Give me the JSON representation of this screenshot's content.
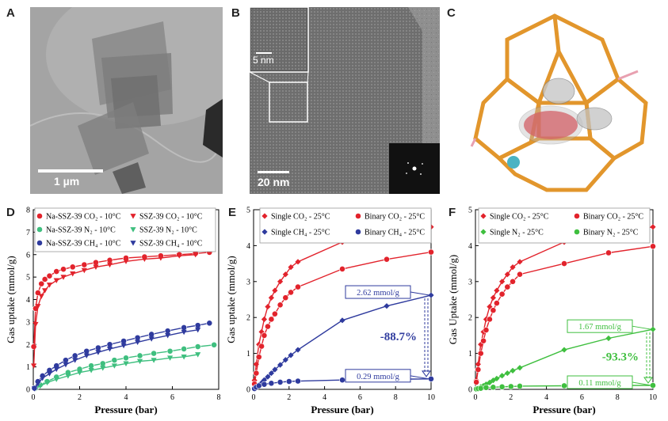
{
  "panels": {
    "A": {
      "letter": "A",
      "scale": "1 µm"
    },
    "B": {
      "letter": "B",
      "scale": "20 nm",
      "inset_scale": "5 nm"
    },
    "C": {
      "letter": "C"
    }
  },
  "colors": {
    "red": "#e2232c",
    "green": "#3fbf7f",
    "blue": "#2f3b9e",
    "green_f": "#3fbf3f"
  },
  "chart_data": [
    {
      "panel": "D",
      "type": "scatter",
      "xlabel": "Pressure (bar)",
      "ylabel": "Gas uptake (mmol/g)",
      "xlim": [
        0,
        8
      ],
      "ylim": [
        0,
        8
      ],
      "xticks": [
        "0",
        "2",
        "4",
        "6",
        "8"
      ],
      "yticks": [
        "0",
        "1",
        "2",
        "3",
        "4",
        "5",
        "6",
        "7",
        "8"
      ],
      "legend": [
        {
          "label": "Na-SSZ-39 CO₂ - 10°C",
          "color": "#e2232c",
          "marker": "circle"
        },
        {
          "label": "SSZ-39 CO₂ - 10°C",
          "color": "#e2232c",
          "marker": "triangle-down"
        },
        {
          "label": "Na-SSZ-39 N₂ - 10°C",
          "color": "#3fbf7f",
          "marker": "circle"
        },
        {
          "label": "SSZ-39 N₂ - 10°C",
          "color": "#3fbf7f",
          "marker": "triangle-down"
        },
        {
          "label": "Na-SSZ-39 CH₄ - 10°C",
          "color": "#2f3b9e",
          "marker": "circle"
        },
        {
          "label": "SSZ-39 CH₄ - 10°C",
          "color": "#2f3b9e",
          "marker": "triangle-down"
        }
      ],
      "series": [
        {
          "color": "#e2232c",
          "marker": "circle",
          "x": [
            0.02,
            0.1,
            0.2,
            0.35,
            0.5,
            0.7,
            1.0,
            1.3,
            1.7,
            2.2,
            2.7,
            3.3,
            4.0,
            4.8,
            5.5,
            6.3,
            7.0,
            7.6
          ],
          "y": [
            1.9,
            3.6,
            4.3,
            4.7,
            4.9,
            5.05,
            5.25,
            5.35,
            5.45,
            5.55,
            5.65,
            5.75,
            5.85,
            5.9,
            5.95,
            6.0,
            6.05,
            6.1
          ]
        },
        {
          "color": "#e2232c",
          "marker": "triangle-down",
          "x": [
            0.02,
            0.1,
            0.2,
            0.35,
            0.5,
            0.7,
            1.0,
            1.3,
            1.7,
            2.2,
            2.7,
            3.3,
            4.0,
            4.8,
            5.5,
            6.3,
            7.0
          ],
          "y": [
            1.05,
            2.9,
            3.7,
            4.15,
            4.4,
            4.65,
            4.85,
            5.0,
            5.15,
            5.3,
            5.45,
            5.55,
            5.7,
            5.8,
            5.85,
            5.95,
            6.0
          ]
        },
        {
          "color": "#3fbf7f",
          "marker": "circle",
          "x": [
            0.1,
            0.3,
            0.6,
            1.0,
            1.5,
            2.0,
            2.5,
            3.0,
            3.5,
            4.0,
            4.6,
            5.2,
            5.9,
            6.5,
            7.1,
            7.8
          ],
          "y": [
            0.05,
            0.2,
            0.35,
            0.55,
            0.75,
            0.9,
            1.05,
            1.15,
            1.3,
            1.4,
            1.5,
            1.6,
            1.7,
            1.8,
            1.9,
            1.98
          ]
        },
        {
          "color": "#3fbf7f",
          "marker": "triangle-down",
          "x": [
            0.1,
            0.3,
            0.6,
            1.0,
            1.5,
            2.0,
            2.5,
            3.0,
            3.5,
            4.0,
            4.6,
            5.2,
            5.9,
            6.5,
            7.1
          ],
          "y": [
            0.03,
            0.15,
            0.3,
            0.45,
            0.6,
            0.75,
            0.85,
            0.95,
            1.05,
            1.15,
            1.25,
            1.3,
            1.4,
            1.45,
            1.55
          ]
        },
        {
          "color": "#2f3b9e",
          "marker": "circle",
          "x": [
            0.05,
            0.2,
            0.4,
            0.7,
            1.0,
            1.4,
            1.8,
            2.3,
            2.8,
            3.3,
            3.9,
            4.5,
            5.1,
            5.8,
            6.5,
            7.1,
            7.6
          ],
          "y": [
            0.05,
            0.35,
            0.6,
            0.85,
            1.05,
            1.3,
            1.5,
            1.7,
            1.85,
            2.0,
            2.15,
            2.3,
            2.45,
            2.6,
            2.75,
            2.85,
            2.95
          ]
        },
        {
          "color": "#2f3b9e",
          "marker": "triangle-down",
          "x": [
            0.05,
            0.2,
            0.4,
            0.7,
            1.0,
            1.4,
            1.8,
            2.3,
            2.8,
            3.3,
            3.9,
            4.5,
            5.1,
            5.8,
            6.5,
            7.1
          ],
          "y": [
            0.03,
            0.25,
            0.5,
            0.7,
            0.9,
            1.1,
            1.3,
            1.5,
            1.65,
            1.8,
            1.95,
            2.1,
            2.25,
            2.4,
            2.55,
            2.65
          ]
        }
      ]
    },
    {
      "panel": "E",
      "type": "scatter",
      "xlabel": "Pressure (bar)",
      "ylabel": "Gas uptake (mmol/g)",
      "xlim": [
        0,
        10
      ],
      "ylim": [
        0,
        5
      ],
      "xticks": [
        "0",
        "2",
        "4",
        "6",
        "8",
        "10"
      ],
      "yticks": [
        "0",
        "1",
        "2",
        "3",
        "4",
        "5"
      ],
      "legend": [
        {
          "label": "Single CO₂ - 25°C",
          "color": "#e2232c",
          "marker": "diamond"
        },
        {
          "label": "Binary CO₂ - 25°C",
          "color": "#e2232c",
          "marker": "circle"
        },
        {
          "label": "Single CH₄ - 25°C",
          "color": "#2f3b9e",
          "marker": "diamond"
        },
        {
          "label": "Binary CH₄ - 25°C",
          "color": "#2f3b9e",
          "marker": "circle"
        }
      ],
      "annotations": [
        "2.62 mmol/g",
        "0.29 mmol/g",
        "-88.7%"
      ],
      "series": [
        {
          "color": "#e2232c",
          "marker": "diamond",
          "x": [
            0.05,
            0.15,
            0.3,
            0.45,
            0.6,
            0.8,
            1.0,
            1.2,
            1.5,
            1.8,
            2.1,
            2.5,
            5.0,
            7.5,
            10.0
          ],
          "y": [
            0.25,
            0.7,
            1.25,
            1.6,
            1.95,
            2.3,
            2.55,
            2.75,
            3.0,
            3.2,
            3.4,
            3.55,
            4.1,
            4.35,
            4.52
          ]
        },
        {
          "color": "#e2232c",
          "marker": "circle",
          "x": [
            0.05,
            0.15,
            0.3,
            0.45,
            0.6,
            0.8,
            1.0,
            1.2,
            1.5,
            1.8,
            2.1,
            2.5,
            5.0,
            7.5,
            10.0
          ],
          "y": [
            0.15,
            0.45,
            0.9,
            1.2,
            1.5,
            1.75,
            1.95,
            2.1,
            2.35,
            2.55,
            2.7,
            2.85,
            3.35,
            3.62,
            3.82
          ]
        },
        {
          "color": "#2f3b9e",
          "marker": "diamond",
          "x": [
            0.05,
            0.15,
            0.3,
            0.45,
            0.6,
            0.8,
            1.0,
            1.2,
            1.5,
            1.8,
            2.1,
            2.5,
            5.0,
            7.5,
            10.0
          ],
          "y": [
            0.02,
            0.06,
            0.12,
            0.18,
            0.26,
            0.35,
            0.45,
            0.55,
            0.68,
            0.82,
            0.95,
            1.1,
            1.92,
            2.32,
            2.62
          ]
        },
        {
          "color": "#2f3b9e",
          "marker": "circle",
          "x": [
            0.05,
            0.15,
            0.3,
            0.6,
            1.0,
            1.5,
            2.0,
            2.5,
            5.0,
            7.5,
            10.0
          ],
          "y": [
            0.02,
            0.06,
            0.1,
            0.14,
            0.17,
            0.2,
            0.22,
            0.23,
            0.26,
            0.28,
            0.29
          ]
        }
      ]
    },
    {
      "panel": "F",
      "type": "scatter",
      "xlabel": "Pressure (bar)",
      "ylabel": "Gas Uptake (mmol/g)",
      "xlim": [
        0,
        10
      ],
      "ylim": [
        0,
        5
      ],
      "xticks": [
        "0",
        "2",
        "4",
        "6",
        "8",
        "10"
      ],
      "yticks": [
        "0",
        "1",
        "2",
        "3",
        "4",
        "5"
      ],
      "legend": [
        {
          "label": "Single CO₂ - 25°C",
          "color": "#e2232c",
          "marker": "diamond"
        },
        {
          "label": "Binary CO₂ - 25°C",
          "color": "#e2232c",
          "marker": "circle"
        },
        {
          "label": "Single N₂ - 25°C",
          "color": "#3fbf3f",
          "marker": "diamond"
        },
        {
          "label": "Binary N₂ - 25°C",
          "color": "#3fbf3f",
          "marker": "circle"
        }
      ],
      "annotations": [
        "1.67 mmol/g",
        "0.11 mmol/g",
        "-93.3%"
      ],
      "series": [
        {
          "color": "#e2232c",
          "marker": "diamond",
          "x": [
            0.05,
            0.15,
            0.3,
            0.45,
            0.6,
            0.8,
            1.0,
            1.2,
            1.5,
            1.8,
            2.1,
            2.5,
            5.0,
            7.5,
            10.0
          ],
          "y": [
            0.25,
            0.7,
            1.25,
            1.6,
            1.95,
            2.3,
            2.55,
            2.75,
            3.0,
            3.2,
            3.4,
            3.55,
            4.1,
            4.35,
            4.52
          ]
        },
        {
          "color": "#e2232c",
          "marker": "circle",
          "x": [
            0.05,
            0.15,
            0.3,
            0.45,
            0.6,
            0.8,
            1.0,
            1.2,
            1.5,
            1.8,
            2.1,
            2.5,
            5.0,
            7.5,
            10.0
          ],
          "y": [
            0.2,
            0.55,
            1.0,
            1.35,
            1.65,
            1.95,
            2.2,
            2.4,
            2.65,
            2.85,
            3.0,
            3.2,
            3.5,
            3.8,
            3.98
          ]
        },
        {
          "color": "#3fbf3f",
          "marker": "diamond",
          "x": [
            0.05,
            0.15,
            0.3,
            0.45,
            0.6,
            0.8,
            1.0,
            1.2,
            1.5,
            1.8,
            2.1,
            2.5,
            5.0,
            7.5,
            10.0
          ],
          "y": [
            0.01,
            0.03,
            0.07,
            0.1,
            0.14,
            0.19,
            0.25,
            0.3,
            0.38,
            0.45,
            0.52,
            0.6,
            1.1,
            1.42,
            1.67
          ]
        },
        {
          "color": "#3fbf3f",
          "marker": "circle",
          "x": [
            0.05,
            0.15,
            0.3,
            0.6,
            1.0,
            1.5,
            2.0,
            2.5,
            5.0,
            7.5,
            10.0
          ],
          "y": [
            0.01,
            0.02,
            0.03,
            0.05,
            0.06,
            0.07,
            0.08,
            0.09,
            0.1,
            0.105,
            0.11
          ]
        }
      ]
    }
  ]
}
